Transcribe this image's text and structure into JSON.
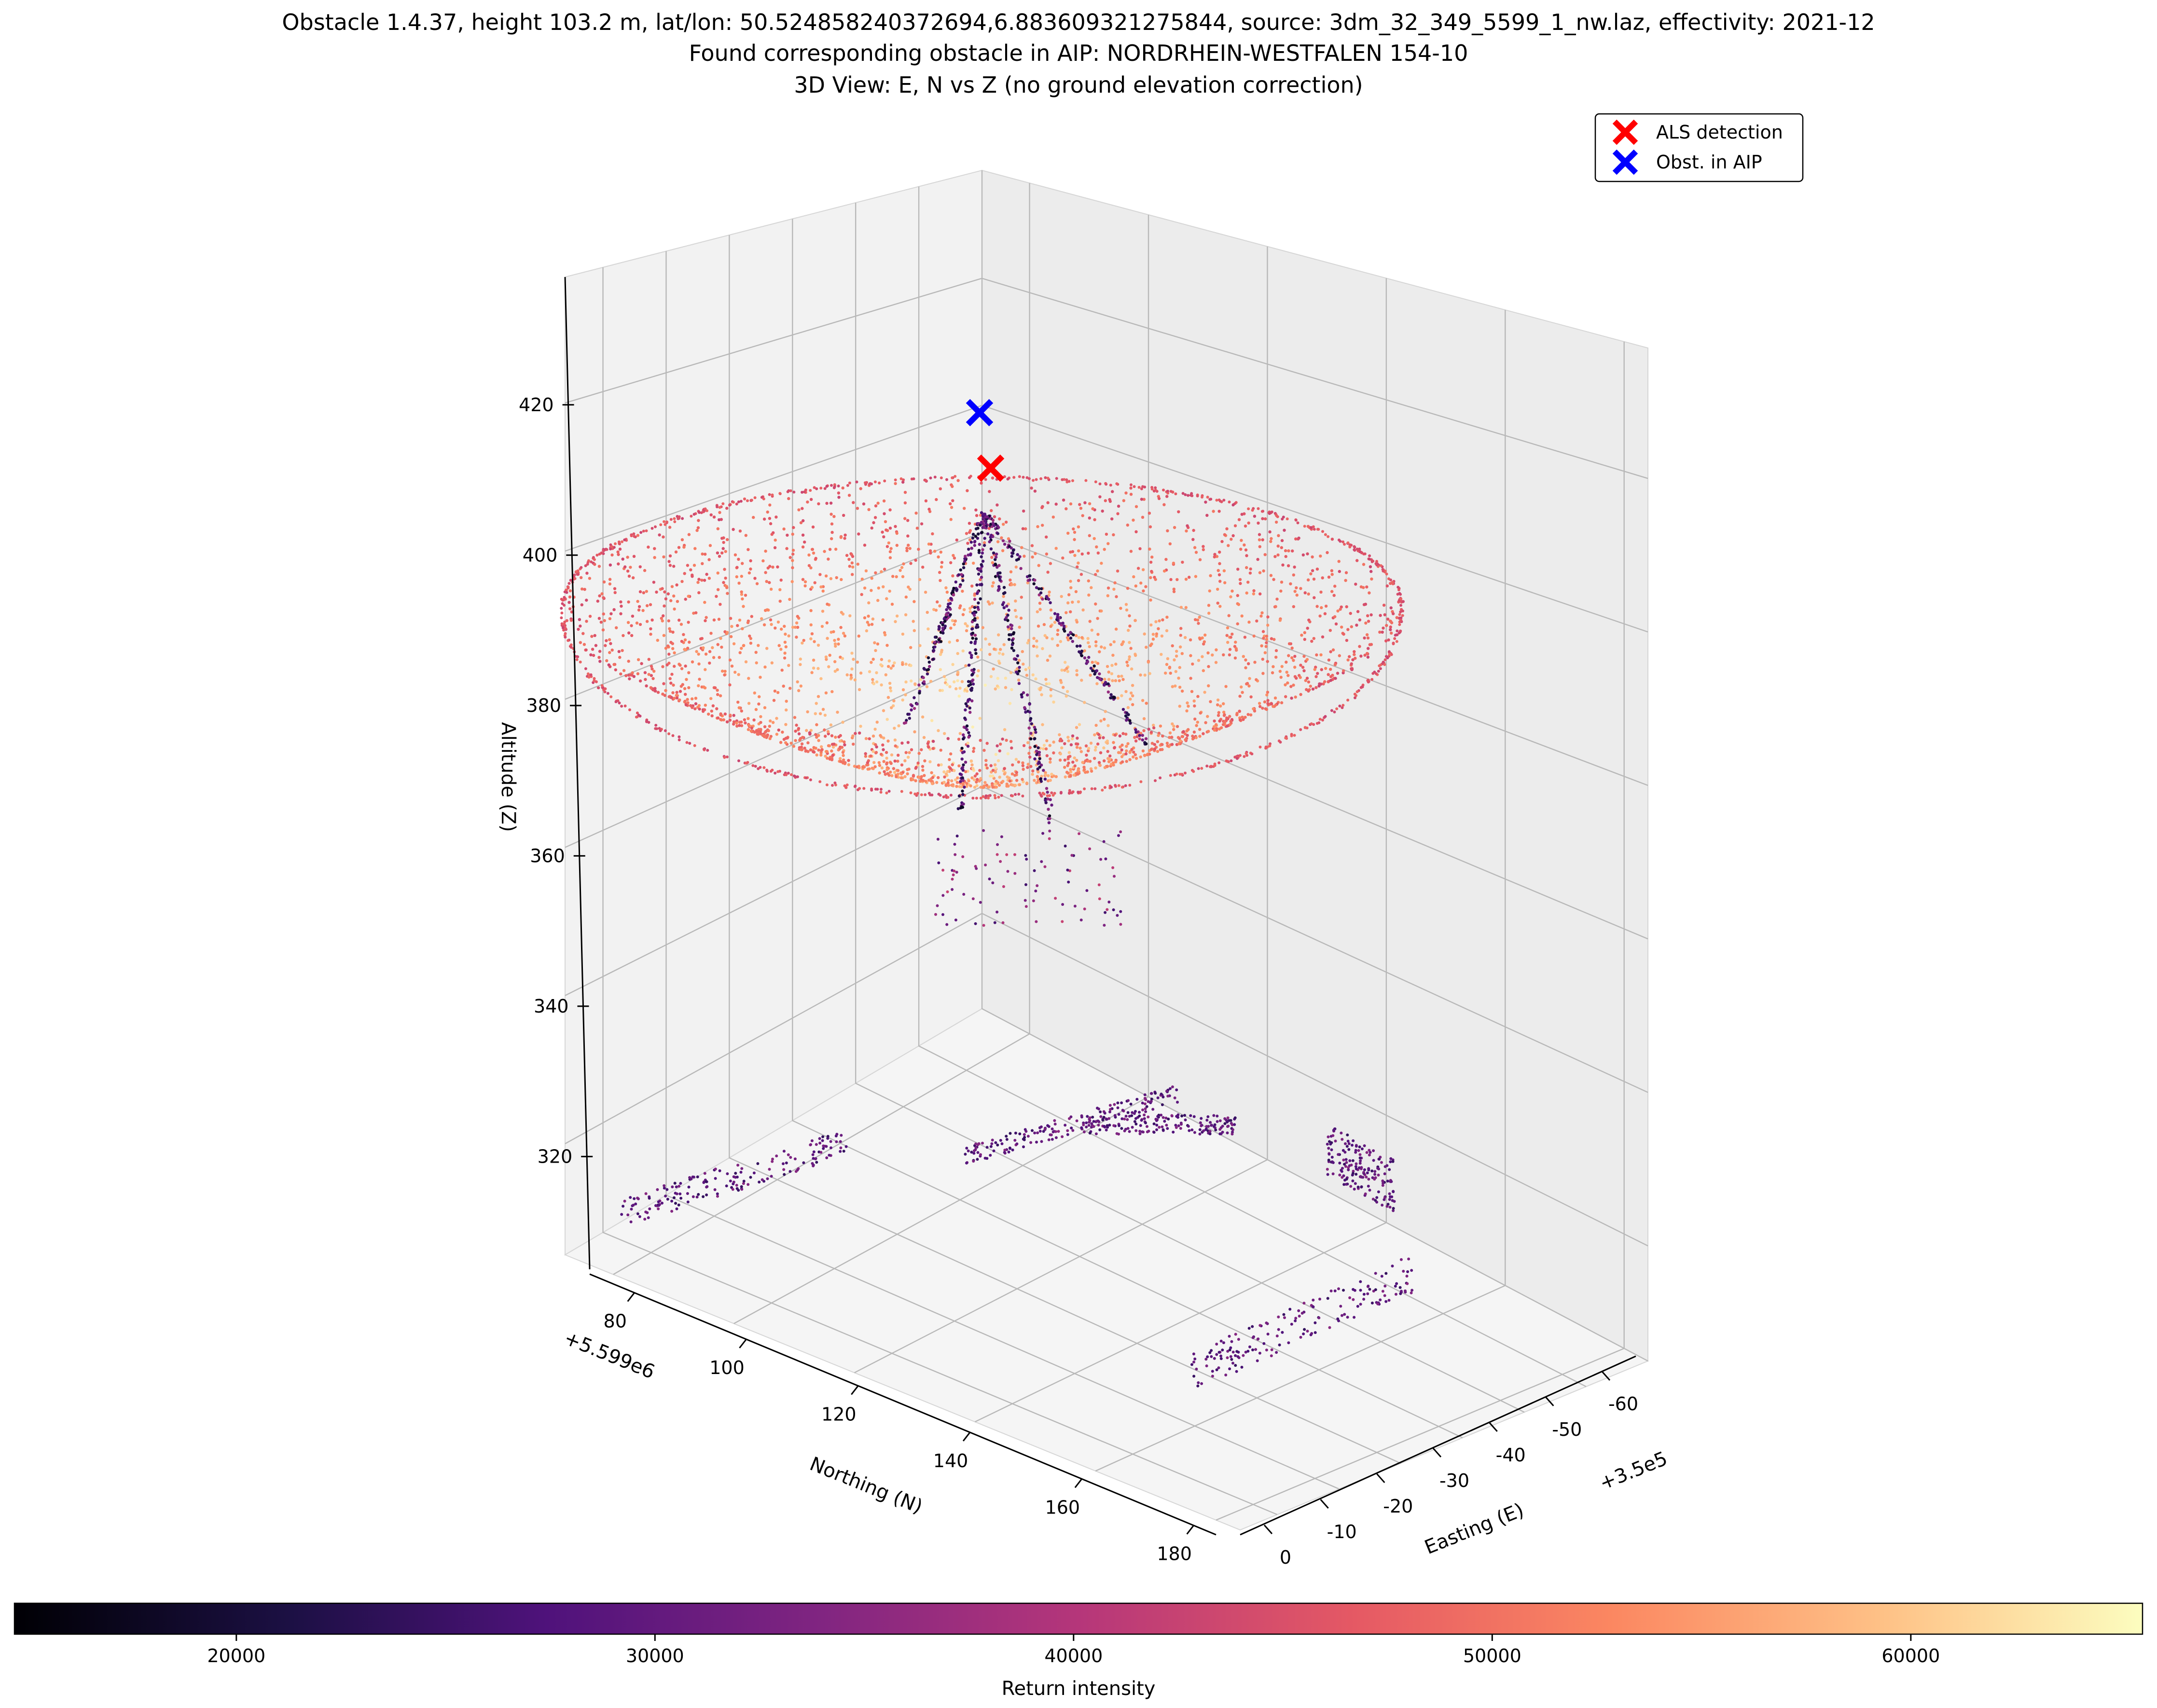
{
  "figure": {
    "title_lines": [
      "Obstacle 1.4.37, height 103.2 m, lat/lon: 50.524858240372694,6.883609321275844, source: 3dm_32_349_5599_1_nw.laz, effectivity: 2021-12",
      "Found corresponding obstacle in AIP: NORDRHEIN-WESTFALEN 154-10",
      "3D View: E, N vs Z (no ground elevation correction)"
    ]
  },
  "chart_data": {
    "type": "scatter",
    "projection": "3d",
    "grid": true,
    "axes": {
      "x": {
        "label": "Easting (E)",
        "offset_label": "+3.5e5",
        "ticks": [
          0,
          -10,
          -20,
          -30,
          -40,
          -50,
          -60
        ],
        "range": [
          0,
          -66
        ]
      },
      "y": {
        "label": "Northing (N)",
        "offset_label": "+5.599e6",
        "ticks": [
          80,
          100,
          120,
          140,
          160,
          180
        ],
        "range": [
          72,
          184
        ]
      },
      "z": {
        "label": "Altitude (Z)",
        "ticks": [
          320,
          340,
          360,
          380,
          400,
          420
        ],
        "range": [
          305,
          437
        ]
      }
    },
    "series": [
      {
        "name": "ALS detection",
        "marker": "x",
        "color": "#ff0000",
        "points": [
          {
            "e": -20,
            "n": 120,
            "z": 413
          }
        ]
      },
      {
        "name": "Obst. in AIP",
        "marker": "x",
        "color": "#0000ff",
        "points": [
          {
            "e": -20,
            "n": 120,
            "z": 420
          }
        ]
      }
    ],
    "point_cloud": {
      "description_colored_by": "intensity",
      "dish": {
        "center": {
          "e": -28,
          "n": 118
        },
        "rim_radius_m": 52,
        "rim_z": 398,
        "bottom_z": 370
      },
      "ground_clusters": [
        {
          "e_range": [
            -10,
            0
          ],
          "n_range": [
            80,
            100
          ],
          "z": 315
        },
        {
          "e_range": [
            -35,
            -20
          ],
          "n_range": [
            95,
            120
          ],
          "z": 320
        },
        {
          "e_range": [
            -60,
            -40
          ],
          "n_range": [
            125,
            150
          ],
          "z": 318
        },
        {
          "e_range": [
            -45,
            -25
          ],
          "n_range": [
            150,
            175
          ],
          "z": 312
        }
      ]
    },
    "legend": {
      "placement": "top-right",
      "entries": [
        "ALS detection",
        "Obst. in AIP"
      ]
    },
    "colorbar": {
      "label": "Return intensity",
      "orientation": "horizontal",
      "ticks": [
        20000,
        30000,
        40000,
        50000,
        60000
      ],
      "range": [
        14700,
        65535
      ],
      "colormap": "magma"
    }
  }
}
